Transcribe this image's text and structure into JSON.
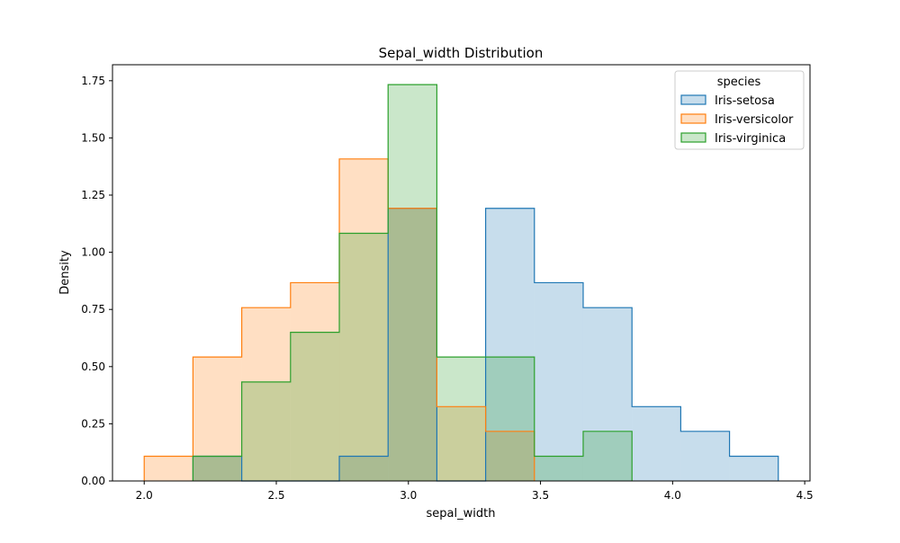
{
  "chart_data": {
    "type": "histogram",
    "title": "Sepal_width Distribution",
    "xlabel": "sepal_width",
    "ylabel": "Density",
    "xlim": [
      1.88,
      4.52
    ],
    "ylim": [
      0,
      1.82
    ],
    "xticks": [
      2.0,
      2.5,
      3.0,
      3.5,
      4.0,
      4.5
    ],
    "xtick_labels": [
      "2.0",
      "2.5",
      "3.0",
      "3.5",
      "4.0",
      "4.5"
    ],
    "yticks": [
      0,
      0.25,
      0.5,
      0.75,
      1.0,
      1.25,
      1.5,
      1.75
    ],
    "ytick_labels": [
      "0.00",
      "0.25",
      "0.50",
      "0.75",
      "1.00",
      "1.25",
      "1.50",
      "1.75"
    ],
    "bin_edges": [
      2.0,
      2.1846,
      2.3692,
      2.5538,
      2.7385,
      2.9231,
      3.1077,
      3.2923,
      3.4769,
      3.6615,
      3.8462,
      4.0308,
      4.2154,
      4.4
    ],
    "grid": false,
    "legend_title": "species",
    "legend_position": "upper right",
    "series": [
      {
        "name": "Iris-setosa",
        "color": "#1f77b4",
        "values": [
          0,
          0.108,
          0,
          0,
          0.108,
          1.192,
          0,
          1.192,
          0.867,
          0.758,
          0.325,
          0.217,
          0.108
        ]
      },
      {
        "name": "Iris-versicolor",
        "color": "#ff7f0e",
        "values": [
          0.108,
          0.542,
          0.758,
          0.867,
          1.408,
          1.192,
          0.325,
          0.217,
          0,
          0,
          0,
          0,
          0
        ]
      },
      {
        "name": "Iris-virginica",
        "color": "#2ca02c",
        "values": [
          0,
          0.108,
          0.433,
          0.65,
          1.083,
          1.733,
          0.542,
          0.542,
          0.108,
          0.217,
          0,
          0,
          0
        ]
      }
    ]
  }
}
